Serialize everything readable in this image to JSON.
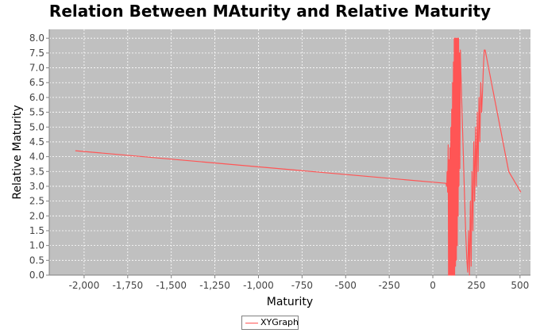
{
  "chart_data": {
    "type": "line",
    "title": "Relation Between MAturity and Relative Maturity",
    "xlabel": "Maturity",
    "ylabel": "Relative Maturity",
    "xlim": [
      -2200,
      560
    ],
    "ylim": [
      0,
      8.3
    ],
    "x_ticks": [
      -2000,
      -1750,
      -1500,
      -1250,
      -1000,
      -750,
      -500,
      -250,
      0,
      250,
      500
    ],
    "x_tick_labels": [
      "-2,000",
      "-1,750",
      "-1,500",
      "-1,250",
      "-1,000",
      "-750",
      "-500",
      "-250",
      "0",
      "250",
      "500"
    ],
    "y_ticks": [
      0,
      0.5,
      1,
      1.5,
      2,
      2.5,
      3,
      3.5,
      4,
      4.5,
      5,
      5.5,
      6,
      6.5,
      7,
      7.5,
      8
    ],
    "y_tick_labels": [
      "0.0",
      "0.5",
      "1.0",
      "1.5",
      "2.0",
      "2.5",
      "3.0",
      "3.5",
      "4.0",
      "4.5",
      "5.0",
      "5.5",
      "6.0",
      "6.5",
      "7.0",
      "7.5",
      "8.0"
    ],
    "grid": true,
    "legend_position": "bottom-center",
    "plot_background": "#c0c0c0",
    "series": [
      {
        "name": "XYGraph",
        "color": "#ff5555",
        "x": [
          -2050,
          75,
          80,
          82,
          85,
          88,
          90,
          93,
          95,
          98,
          100,
          103,
          105,
          108,
          110,
          113,
          115,
          118,
          120,
          123,
          125,
          128,
          130,
          133,
          135,
          138,
          140,
          143,
          145,
          148,
          150,
          153,
          155,
          158,
          160,
          163,
          165,
          170,
          175,
          180,
          185,
          190,
          195,
          200,
          205,
          210,
          215,
          220,
          225,
          230,
          235,
          240,
          245,
          250,
          255,
          260,
          265,
          270,
          275,
          280,
          285,
          290,
          295,
          300,
          435,
          505
        ],
        "y": [
          4.2,
          3.1,
          3.0,
          3.5,
          2.8,
          4.4,
          0.0,
          3.9,
          0.0,
          4.3,
          0.0,
          5.0,
          0.0,
          5.6,
          0.0,
          6.5,
          0.0,
          7.2,
          0.0,
          8.0,
          0.0,
          8.0,
          0.3,
          8.0,
          0.5,
          8.0,
          1.0,
          8.0,
          2.0,
          8.0,
          3.0,
          7.5,
          3.6,
          7.6,
          7.0,
          6.5,
          6.0,
          5.0,
          4.0,
          3.0,
          2.0,
          1.2,
          0.5,
          0.1,
          1.5,
          0.0,
          2.5,
          0.3,
          3.5,
          1.5,
          4.5,
          2.5,
          5.0,
          3.0,
          5.5,
          3.5,
          6.0,
          4.5,
          6.5,
          5.5,
          6.2,
          7.0,
          7.6,
          7.6,
          3.5,
          2.8
        ]
      }
    ]
  }
}
